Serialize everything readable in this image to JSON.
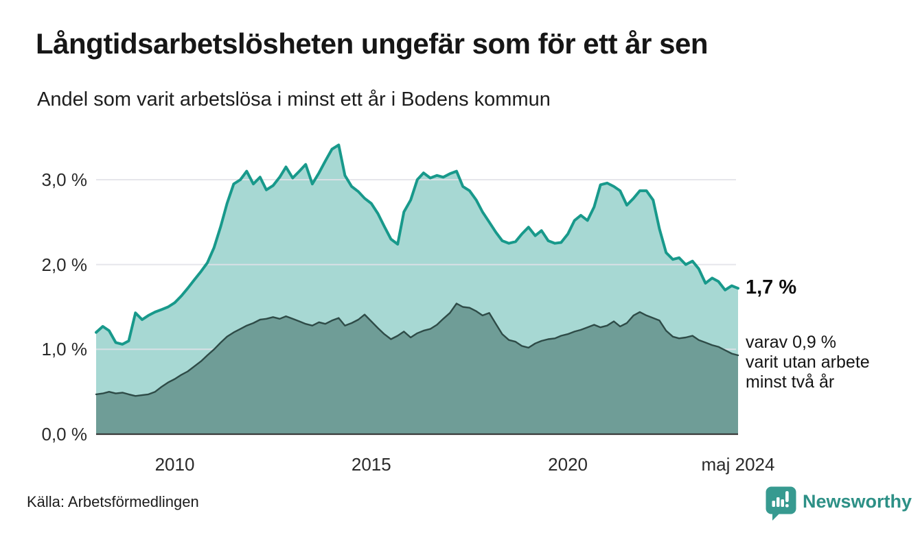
{
  "title": "Långtidsarbetslösheten ungefär som för ett år sen",
  "subtitle": "Andel som varit arbetslösa i minst ett år i Bodens kommun",
  "source": "Källa: Arbetsförmedlingen",
  "branding": {
    "name": "Newsworthy",
    "icon": "newsworthy-bubble-barchart-icon",
    "brand_color": "#2d9086"
  },
  "annotations": {
    "latest_total_label": "1,7 %",
    "two_year_note_lines": [
      "varav 0,9 %",
      "varit utan arbete",
      "minst två år"
    ]
  },
  "colors": {
    "line_total": "#18998b",
    "fill_total": "rgba(24,153,139,0.38)",
    "fill_two_year": "#6f9d97",
    "line_two_year": "#2e4b47",
    "gridline": "#e2e2e7",
    "baseline": "#3a3a3a",
    "text": "#1a1a1a"
  },
  "chart_data": {
    "type": "area",
    "title": "Långtidsarbetslösheten ungefär som för ett år sen",
    "subtitle": "Andel som varit arbetslösa i minst ett år i Bodens kommun",
    "unit": "%",
    "xlim": [
      2008.0,
      2024.33
    ],
    "ylim": [
      0,
      3.6
    ],
    "grid": "horizontal",
    "legend_position": "none",
    "x_ticks": [
      {
        "x": 2010.0,
        "label": "2010"
      },
      {
        "x": 2015.0,
        "label": "2015"
      },
      {
        "x": 2020.0,
        "label": "2020"
      },
      {
        "x": 2024.33,
        "label": "maj 2024"
      }
    ],
    "y_ticks": [
      {
        "y": 0,
        "label": "0,0 %"
      },
      {
        "y": 1,
        "label": "1,0 %"
      },
      {
        "y": 2,
        "label": "2,0 %"
      },
      {
        "y": 3,
        "label": "3,0 %"
      }
    ],
    "x": [
      2008.0,
      2008.17,
      2008.33,
      2008.5,
      2008.67,
      2008.83,
      2009.0,
      2009.17,
      2009.33,
      2009.5,
      2009.67,
      2009.83,
      2010.0,
      2010.17,
      2010.33,
      2010.5,
      2010.67,
      2010.83,
      2011.0,
      2011.17,
      2011.33,
      2011.5,
      2011.67,
      2011.83,
      2012.0,
      2012.17,
      2012.33,
      2012.5,
      2012.67,
      2012.83,
      2013.0,
      2013.17,
      2013.33,
      2013.5,
      2013.67,
      2013.83,
      2014.0,
      2014.17,
      2014.33,
      2014.5,
      2014.67,
      2014.83,
      2015.0,
      2015.17,
      2015.33,
      2015.5,
      2015.67,
      2015.83,
      2016.0,
      2016.17,
      2016.33,
      2016.5,
      2016.67,
      2016.83,
      2017.0,
      2017.17,
      2017.33,
      2017.5,
      2017.67,
      2017.83,
      2018.0,
      2018.17,
      2018.33,
      2018.5,
      2018.67,
      2018.83,
      2019.0,
      2019.17,
      2019.33,
      2019.5,
      2019.67,
      2019.83,
      2020.0,
      2020.17,
      2020.33,
      2020.5,
      2020.67,
      2020.83,
      2021.0,
      2021.17,
      2021.33,
      2021.5,
      2021.67,
      2021.83,
      2022.0,
      2022.17,
      2022.33,
      2022.5,
      2022.67,
      2022.83,
      2023.0,
      2023.17,
      2023.33,
      2023.5,
      2023.67,
      2023.83,
      2024.0,
      2024.17,
      2024.33
    ],
    "series": [
      {
        "name": "Arbetslösa minst ett år",
        "role": "total",
        "latest_value": 1.7,
        "values": [
          1.2,
          1.27,
          1.22,
          1.08,
          1.06,
          1.1,
          1.43,
          1.35,
          1.4,
          1.44,
          1.47,
          1.5,
          1.55,
          1.63,
          1.72,
          1.82,
          1.92,
          2.02,
          2.2,
          2.45,
          2.72,
          2.95,
          3.0,
          3.1,
          2.95,
          3.03,
          2.88,
          2.93,
          3.03,
          3.15,
          3.02,
          3.1,
          3.18,
          2.95,
          3.08,
          3.22,
          3.36,
          3.41,
          3.05,
          2.92,
          2.86,
          2.78,
          2.72,
          2.6,
          2.45,
          2.3,
          2.24,
          2.62,
          2.76,
          3.0,
          3.08,
          3.02,
          3.05,
          3.03,
          3.07,
          3.1,
          2.92,
          2.87,
          2.76,
          2.62,
          2.5,
          2.38,
          2.28,
          2.25,
          2.27,
          2.36,
          2.44,
          2.34,
          2.4,
          2.28,
          2.25,
          2.26,
          2.36,
          2.52,
          2.58,
          2.52,
          2.68,
          2.94,
          2.96,
          2.92,
          2.87,
          2.7,
          2.78,
          2.87,
          2.87,
          2.76,
          2.42,
          2.14,
          2.06,
          2.08,
          2.0,
          2.04,
          1.95,
          1.78,
          1.84,
          1.8,
          1.7,
          1.75,
          1.72
        ]
      },
      {
        "name": "Arbetslösa minst två år",
        "role": "subset",
        "latest_value": 0.9,
        "values": [
          0.47,
          0.48,
          0.5,
          0.48,
          0.49,
          0.47,
          0.45,
          0.46,
          0.47,
          0.5,
          0.56,
          0.61,
          0.65,
          0.7,
          0.74,
          0.8,
          0.86,
          0.93,
          1.0,
          1.08,
          1.15,
          1.2,
          1.24,
          1.28,
          1.31,
          1.35,
          1.36,
          1.38,
          1.36,
          1.39,
          1.36,
          1.33,
          1.3,
          1.28,
          1.32,
          1.3,
          1.34,
          1.37,
          1.28,
          1.31,
          1.35,
          1.41,
          1.33,
          1.25,
          1.18,
          1.12,
          1.16,
          1.21,
          1.14,
          1.19,
          1.22,
          1.24,
          1.29,
          1.36,
          1.43,
          1.54,
          1.5,
          1.49,
          1.45,
          1.4,
          1.43,
          1.3,
          1.18,
          1.11,
          1.09,
          1.04,
          1.02,
          1.07,
          1.1,
          1.12,
          1.13,
          1.16,
          1.18,
          1.21,
          1.23,
          1.26,
          1.29,
          1.26,
          1.28,
          1.33,
          1.27,
          1.31,
          1.4,
          1.44,
          1.4,
          1.37,
          1.34,
          1.22,
          1.15,
          1.13,
          1.14,
          1.16,
          1.11,
          1.08,
          1.05,
          1.03,
          0.99,
          0.95,
          0.93
        ]
      }
    ]
  }
}
